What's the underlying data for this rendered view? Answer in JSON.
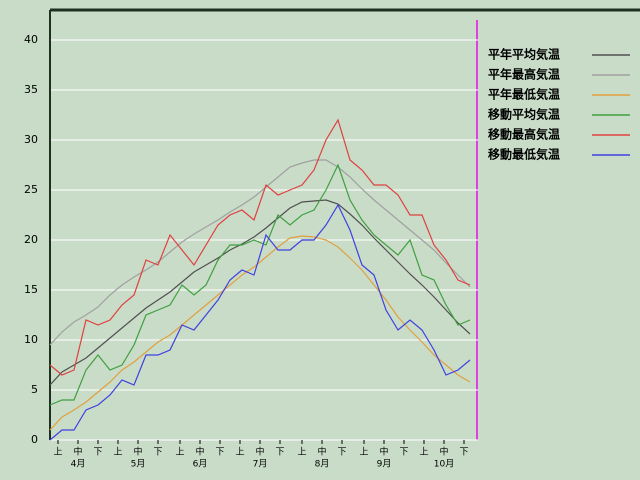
{
  "chart_data": {
    "type": "line",
    "x": [
      0,
      6,
      12,
      18,
      24,
      30,
      36,
      42,
      48,
      54,
      60,
      66,
      72,
      78,
      84,
      90,
      96,
      102,
      108,
      114,
      120,
      126,
      132,
      138,
      144,
      150,
      156,
      162,
      168,
      174,
      180,
      186,
      192,
      198,
      204,
      210
    ],
    "series": [
      {
        "name": "平年平均気温",
        "color": "#505050",
        "values": [
          5.5,
          6.8,
          7.5,
          8.2,
          9.2,
          10.2,
          11.2,
          12.2,
          13.2,
          14.0,
          14.8,
          15.8,
          16.8,
          17.5,
          18.2,
          19.0,
          19.6,
          20.3,
          21.2,
          22.2,
          23.2,
          23.8,
          23.9,
          24.0,
          23.6,
          22.6,
          21.5,
          20.2,
          19.0,
          17.8,
          16.6,
          15.5,
          14.3,
          13.0,
          11.7,
          10.6
        ]
      },
      {
        "name": "平年最高気温",
        "color": "#a0a0a0",
        "values": [
          9.5,
          10.8,
          11.8,
          12.5,
          13.3,
          14.5,
          15.5,
          16.3,
          17.0,
          17.8,
          18.8,
          19.8,
          20.6,
          21.3,
          22.0,
          22.8,
          23.5,
          24.3,
          25.3,
          26.3,
          27.3,
          27.7,
          28.0,
          28.0,
          27.3,
          26.3,
          25.1,
          24.0,
          23.0,
          22.0,
          21.0,
          20.0,
          19.0,
          17.7,
          16.5,
          15.3
        ]
      },
      {
        "name": "平年最低気温",
        "color": "#e0a040",
        "values": [
          1.0,
          2.3,
          3.0,
          3.8,
          4.8,
          5.8,
          7.0,
          7.8,
          8.8,
          9.8,
          10.5,
          11.5,
          12.5,
          13.5,
          14.5,
          15.5,
          16.5,
          17.3,
          18.3,
          19.3,
          20.2,
          20.4,
          20.3,
          20.0,
          19.3,
          18.2,
          17.0,
          15.5,
          14.0,
          12.3,
          11.0,
          9.8,
          8.5,
          7.5,
          6.5,
          5.8
        ]
      },
      {
        "name": "移動平均気温",
        "color": "#40a040",
        "values": [
          3.5,
          4.0,
          4.0,
          7.0,
          8.5,
          7.0,
          7.5,
          9.5,
          12.5,
          13.0,
          13.5,
          15.5,
          14.5,
          15.5,
          18.0,
          19.5,
          19.5,
          20.0,
          19.5,
          22.5,
          21.5,
          22.5,
          23.0,
          25.0,
          27.5,
          24.0,
          22.0,
          20.5,
          19.5,
          18.5,
          20.0,
          16.5,
          16.0,
          13.5,
          11.5,
          12.0
        ]
      },
      {
        "name": "移動最高気温",
        "color": "#e04040",
        "values": [
          7.5,
          6.5,
          7.0,
          12.0,
          11.5,
          12.0,
          13.5,
          14.5,
          18.0,
          17.5,
          20.5,
          19.0,
          17.5,
          19.5,
          21.5,
          22.5,
          23.0,
          22.0,
          25.5,
          24.5,
          25.0,
          25.5,
          27.0,
          30.0,
          32.0,
          28.0,
          27.0,
          25.5,
          25.5,
          24.5,
          22.5,
          22.5,
          19.5,
          18.0,
          16.0,
          15.5
        ]
      },
      {
        "name": "移動最低気温",
        "color": "#4040e0",
        "values": [
          0,
          1.0,
          1.0,
          3.0,
          3.5,
          4.5,
          6.0,
          5.5,
          8.5,
          8.5,
          9.0,
          11.5,
          11.0,
          12.5,
          14.0,
          16.0,
          17.0,
          16.5,
          20.5,
          19.0,
          19.0,
          20.0,
          20.0,
          21.5,
          23.5,
          21.0,
          17.5,
          16.5,
          13.0,
          11.0,
          12.0,
          11.0,
          9.0,
          6.5,
          7.0,
          8.0
        ]
      }
    ],
    "xlim": [
      0,
      214
    ],
    "ylim": [
      0,
      43
    ],
    "yticks": [
      0,
      5,
      10,
      15,
      20,
      25,
      30,
      35,
      40
    ],
    "grid": true,
    "xticks": [
      {
        "value": 4,
        "label": "上"
      },
      {
        "value": 14,
        "label": "中"
      },
      {
        "value": 24,
        "label": "下"
      },
      {
        "value": 34,
        "label": "上"
      },
      {
        "value": 44,
        "label": "中"
      },
      {
        "value": 54,
        "label": "下"
      },
      {
        "value": 65,
        "label": "上"
      },
      {
        "value": 75,
        "label": "中"
      },
      {
        "value": 85,
        "label": "下"
      },
      {
        "value": 95,
        "label": "上"
      },
      {
        "value": 105,
        "label": "中"
      },
      {
        "value": 115,
        "label": "下"
      },
      {
        "value": 126,
        "label": "上"
      },
      {
        "value": 136,
        "label": "中"
      },
      {
        "value": 146,
        "label": "下"
      },
      {
        "value": 157,
        "label": "上"
      },
      {
        "value": 167,
        "label": "中"
      },
      {
        "value": 177,
        "label": "下"
      },
      {
        "value": 187,
        "label": "上"
      },
      {
        "value": 197,
        "label": "中"
      },
      {
        "value": 207,
        "label": "下"
      }
    ],
    "month_ticks": [
      {
        "value": 14,
        "label": "4月"
      },
      {
        "value": 44,
        "label": "5月"
      },
      {
        "value": 75,
        "label": "6月"
      },
      {
        "value": 105,
        "label": "7月"
      },
      {
        "value": 136,
        "label": "8月"
      },
      {
        "value": 167,
        "label": "9月"
      },
      {
        "value": 197,
        "label": "10月"
      }
    ],
    "legend": "right"
  }
}
